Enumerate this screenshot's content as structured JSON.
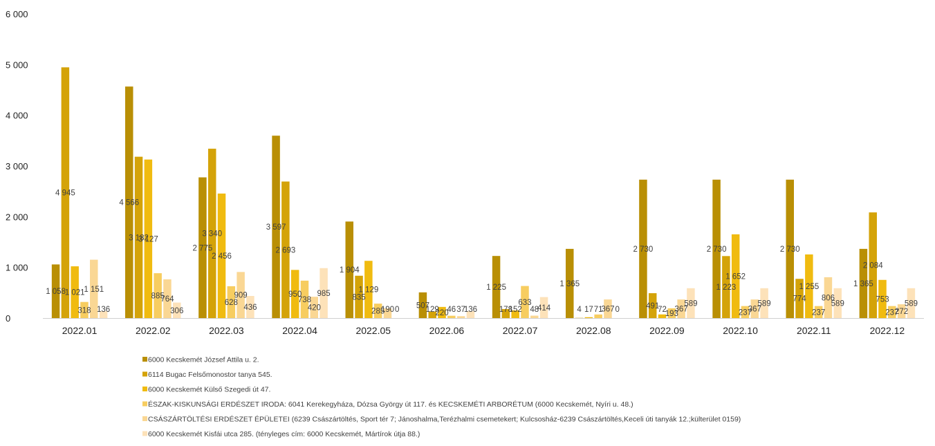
{
  "chart_data": {
    "type": "bar",
    "title": "",
    "xlabel": "",
    "ylabel": "",
    "ylim": [
      0,
      6000
    ],
    "yticks": [
      0,
      1000,
      2000,
      3000,
      4000,
      5000,
      6000
    ],
    "ytick_labels": [
      "0",
      "1 000",
      "2 000",
      "3 000",
      "4 000",
      "5 000",
      "6 000"
    ],
    "grid": false,
    "legend_position": "bottom",
    "categories": [
      "2022.01",
      "2022.02",
      "2022.03",
      "2022.04",
      "2022.05",
      "2022.06",
      "2022.07",
      "2022.08",
      "2022.09",
      "2022.10",
      "2022.11",
      "2022.12"
    ],
    "series": [
      {
        "name": "6000 Kecskemét József Attila u. 2.",
        "color": "#b98f05",
        "values": [
          1058,
          4566,
          2775,
          3597,
          1904,
          507,
          1225,
          1365,
          2730,
          2730,
          2730,
          1365
        ],
        "labels": [
          "1 058",
          "4 566",
          "2 775",
          "3 597",
          "1 904",
          "507",
          "1 225",
          "1 365",
          "2 730",
          "2 730",
          "2 730",
          "1 365"
        ]
      },
      {
        "name": "6114 Bugac Felsőmonostor tanya 545.",
        "color": "#d4a309",
        "values": [
          4945,
          3182,
          3340,
          2693,
          835,
          129,
          178,
          4,
          491,
          1223,
          774,
          2084
        ],
        "labels": [
          "4 945",
          "3 182",
          "3 340",
          "2 693",
          "835",
          "129",
          "178",
          "4",
          "491",
          "1 223",
          "774",
          "2 084"
        ]
      },
      {
        "name": "6000 Kecskemét Külső Szegedi út 47.",
        "color": "#f0bb10",
        "values": [
          1021,
          3127,
          2456,
          950,
          1129,
          220,
          152,
          17,
          72,
          1652,
          1255,
          753
        ],
        "labels": [
          "1 021",
          "3 127",
          "2 456",
          "950",
          "1 129",
          "220",
          "152",
          "17",
          "72",
          "1 652",
          "1 255",
          "753"
        ]
      },
      {
        "name": "ÉSZAK-KISKUNSÁGI ERDÉSZET IRODA: 6041 Kerekegyháza, Dózsa György út 117. és KECSKEMÉTI ARBORÉTUM (6000 Kecskemét, Nyíri u. 48.)",
        "color": "#f7cd60",
        "values": [
          318,
          885,
          628,
          738,
          285,
          46,
          633,
          71,
          193,
          237,
          237,
          237
        ],
        "labels": [
          "318",
          "885",
          "628",
          "738",
          "285",
          "46",
          "633",
          "71",
          "193",
          "237",
          "237",
          "237"
        ]
      },
      {
        "name": "CSÁSZÁRTÖLTÉSI ERDÉSZET ÉPÜLETEI (6239 Császártöltés, Sport tér 7; Jánoshalma,Terézhalmi csemetekert; Kulcsosház-6239 Császártöltés,Keceli úti tanyák 12.;külterület 0159)",
        "color": "#fad794",
        "values": [
          1151,
          764,
          909,
          420,
          190,
          37,
          48,
          367,
          367,
          367,
          806,
          272
        ],
        "labels": [
          "1 151",
          "764",
          "909",
          "420",
          "190",
          "37",
          "48",
          "367",
          "367",
          "367",
          "806",
          "272"
        ]
      },
      {
        "name": "6000 Kecskemét Kisfái utca 285. (tényleges cím: 6000 Kecskemét, Mártírok útja 88.)",
        "color": "#fde2b9",
        "values": [
          136,
          306,
          436,
          985,
          0,
          136,
          414,
          0,
          589,
          589,
          589,
          589
        ],
        "labels": [
          "136",
          "306",
          "436",
          "985",
          "0",
          "136",
          "414",
          "0",
          "589",
          "589",
          "589",
          "589"
        ]
      }
    ]
  }
}
